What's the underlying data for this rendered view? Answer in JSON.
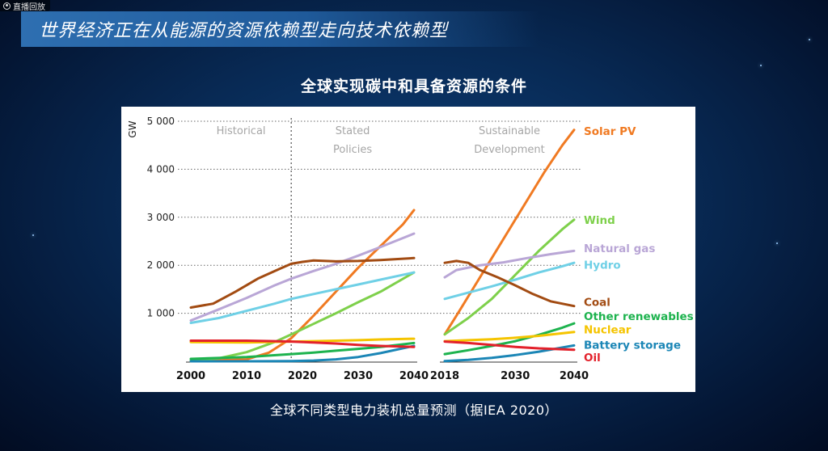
{
  "badge": {
    "label": "直播回放"
  },
  "banner": {
    "title": "世界经济正在从能源的资源依赖型走向技术依赖型"
  },
  "chart_title": "全球实现碳中和具备资源的条件",
  "caption": "全球不同类型电力装机总量预测（据IEA 2020）",
  "chart_data": {
    "type": "line",
    "ylabel": "GW",
    "ylim": [
      0,
      5000
    ],
    "yticks": [
      1000,
      2000,
      3000,
      4000,
      5000
    ],
    "ytick_labels": [
      "1 000",
      "2 000",
      "3 000",
      "4 000",
      "5 000"
    ],
    "colors": {
      "Solar PV": "#f07a22",
      "Wind": "#7ed04b",
      "Natural gas": "#b9a6d6",
      "Hydro": "#6fd0e6",
      "Coal": "#a24b12",
      "Other renewables": "#1db34e",
      "Nuclear": "#f5c400",
      "Battery storage": "#1b86b6",
      "Oil": "#e3212b"
    },
    "panels": [
      {
        "name": "historical-stated-policies",
        "xlim": [
          2000,
          2040
        ],
        "xticks": [
          2000,
          2010,
          2020,
          2030,
          2040
        ],
        "divider_x": 2018,
        "region_labels": [
          {
            "lines": [
              "Historical"
            ],
            "x": 2009
          },
          {
            "lines": [
              "Stated",
              "Policies"
            ],
            "x": 2029
          }
        ],
        "series": [
          {
            "name": "Solar PV",
            "x": [
              2000,
              2010,
              2014,
              2018,
              2022,
              2026,
              2030,
              2034,
              2038,
              2040
            ],
            "y": [
              2,
              40,
              180,
              480,
              950,
              1450,
              1950,
              2400,
              2850,
              3150
            ]
          },
          {
            "name": "Wind",
            "x": [
              2000,
              2005,
              2010,
              2015,
              2018,
              2022,
              2026,
              2030,
              2034,
              2040
            ],
            "y": [
              20,
              60,
              190,
              400,
              560,
              780,
              1000,
              1230,
              1450,
              1850
            ]
          },
          {
            "name": "Natural gas",
            "x": [
              2000,
              2005,
              2010,
              2015,
              2018,
              2022,
              2026,
              2030,
              2034,
              2040
            ],
            "y": [
              850,
              1080,
              1320,
              1580,
              1720,
              1880,
              2030,
              2200,
              2380,
              2660
            ]
          },
          {
            "name": "Hydro",
            "x": [
              2000,
              2005,
              2010,
              2015,
              2018,
              2022,
              2026,
              2030,
              2034,
              2040
            ],
            "y": [
              800,
              900,
              1050,
              1200,
              1300,
              1400,
              1500,
              1600,
              1700,
              1850
            ]
          },
          {
            "name": "Coal",
            "x": [
              2000,
              2004,
              2008,
              2012,
              2016,
              2018,
              2020,
              2022,
              2026,
              2030,
              2034,
              2040
            ],
            "y": [
              1120,
              1200,
              1450,
              1720,
              1930,
              2030,
              2070,
              2100,
              2080,
              2090,
              2110,
              2150
            ]
          },
          {
            "name": "Other renewables",
            "x": [
              2000,
              2010,
              2018,
              2022,
              2026,
              2030,
              2034,
              2040
            ],
            "y": [
              50,
              90,
              150,
              180,
              220,
              260,
              300,
              380
            ]
          },
          {
            "name": "Nuclear",
            "x": [
              2000,
              2010,
              2018,
              2022,
              2026,
              2030,
              2034,
              2040
            ],
            "y": [
              400,
              390,
              410,
              420,
              430,
              440,
              455,
              470
            ]
          },
          {
            "name": "Battery storage",
            "x": [
              2000,
              2010,
              2018,
              2022,
              2026,
              2030,
              2034,
              2040
            ],
            "y": [
              0,
              0,
              5,
              15,
              40,
              90,
              170,
              320
            ]
          },
          {
            "name": "Oil",
            "x": [
              2000,
              2005,
              2010,
              2015,
              2018,
              2022,
              2026,
              2030,
              2034,
              2040
            ],
            "y": [
              430,
              430,
              430,
              420,
              410,
              390,
              370,
              340,
              320,
              300
            ]
          }
        ]
      },
      {
        "name": "sustainable-development",
        "xlim": [
          2018,
          2040
        ],
        "xticks": [
          2018,
          2030,
          2040
        ],
        "region_labels": [
          {
            "lines": [
              "Sustainable",
              "Development"
            ],
            "x": 2029
          }
        ],
        "series": [
          {
            "name": "Solar PV",
            "x": [
              2018,
              2020,
              2023,
              2026,
              2029,
              2032,
              2035,
              2038,
              2040
            ],
            "y": [
              560,
              950,
              1550,
              2150,
              2750,
              3350,
              3950,
              4500,
              4820
            ]
          },
          {
            "name": "Wind",
            "x": [
              2018,
              2022,
              2026,
              2030,
              2034,
              2038,
              2040
            ],
            "y": [
              560,
              900,
              1300,
              1800,
              2300,
              2750,
              2950
            ]
          },
          {
            "name": "Natural gas",
            "x": [
              2018,
              2020,
              2024,
              2028,
              2032,
              2036,
              2040
            ],
            "y": [
              1750,
              1900,
              2000,
              2060,
              2150,
              2230,
              2300
            ]
          },
          {
            "name": "Hydro",
            "x": [
              2018,
              2022,
              2026,
              2030,
              2034,
              2038,
              2040
            ],
            "y": [
              1300,
              1430,
              1560,
              1700,
              1850,
              1980,
              2050
            ]
          },
          {
            "name": "Coal",
            "x": [
              2018,
              2020,
              2022,
              2024,
              2027,
              2030,
              2033,
              2036,
              2040
            ],
            "y": [
              2050,
              2090,
              2050,
              1900,
              1750,
              1580,
              1400,
              1250,
              1150
            ]
          },
          {
            "name": "Other renewables",
            "x": [
              2018,
              2022,
              2026,
              2030,
              2034,
              2038,
              2040
            ],
            "y": [
              150,
              230,
              320,
              420,
              550,
              700,
              790
            ]
          },
          {
            "name": "Nuclear",
            "x": [
              2018,
              2022,
              2026,
              2030,
              2034,
              2040
            ],
            "y": [
              420,
              440,
              460,
              490,
              530,
              610
            ]
          },
          {
            "name": "Battery storage",
            "x": [
              2018,
              2022,
              2026,
              2030,
              2034,
              2040
            ],
            "y": [
              5,
              30,
              70,
              130,
              200,
              330
            ]
          },
          {
            "name": "Oil",
            "x": [
              2018,
              2022,
              2026,
              2030,
              2034,
              2040
            ],
            "y": [
              410,
              380,
              340,
              300,
              270,
              240
            ]
          }
        ]
      }
    ],
    "legend": [
      {
        "name": "Solar PV",
        "y": 4800
      },
      {
        "name": "Wind",
        "y": 2950
      },
      {
        "name": "Natural gas",
        "y": 2360
      },
      {
        "name": "Hydro",
        "y": 2010
      },
      {
        "name": "Coal",
        "y": 1240
      },
      {
        "name": "Other renewables",
        "y": 945
      },
      {
        "name": "Nuclear",
        "y": 665
      },
      {
        "name": "Battery storage",
        "y": 345
      },
      {
        "name": "Oil",
        "y": 80
      }
    ]
  }
}
